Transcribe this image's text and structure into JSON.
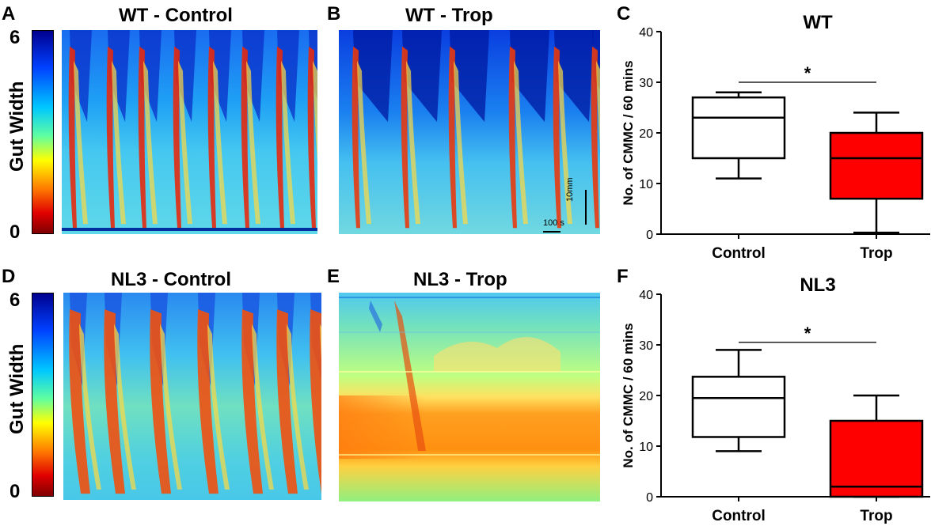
{
  "panels": {
    "A": {
      "letter": "A",
      "title": "WT - Control"
    },
    "B": {
      "letter": "B",
      "title": "WT - Trop",
      "scale_time": "100 s",
      "scale_length": "10mm"
    },
    "C": {
      "letter": "C"
    },
    "D": {
      "letter": "D",
      "title": "NL3 - Control"
    },
    "E": {
      "letter": "E",
      "title": "NL3 - Trop"
    },
    "F": {
      "letter": "F"
    }
  },
  "colorbar": {
    "label": "Gut Width",
    "max_label": "6",
    "min_label": "0"
  },
  "colors": {
    "trop_fill": "#ff0000",
    "control_fill": "#ffffff"
  },
  "chart_data": [
    {
      "type": "box",
      "title": "WT",
      "xlabel": "",
      "ylabel": "No. of CMMC / 60 mins",
      "ylim": [
        0,
        40
      ],
      "yticks": [
        "0",
        "10",
        "20",
        "30",
        "40"
      ],
      "categories": [
        "Control",
        "Trop"
      ],
      "boxes": [
        {
          "name": "Control",
          "min": 11,
          "q1": 15,
          "median": 23,
          "q3": 27,
          "max": 28,
          "fill": "#ffffff"
        },
        {
          "name": "Trop",
          "min": 0.3,
          "q1": 7,
          "median": 15,
          "q3": 20,
          "max": 24,
          "fill": "#ff0000"
        }
      ],
      "significance": {
        "label": "*",
        "y": 30
      }
    },
    {
      "type": "box",
      "title": "NL3",
      "xlabel": "",
      "ylabel": "No. of CMMC / 60 mins",
      "ylim": [
        0,
        40
      ],
      "yticks": [
        "0",
        "10",
        "20",
        "30",
        "40"
      ],
      "categories": [
        "Control",
        "Trop"
      ],
      "boxes": [
        {
          "name": "Control",
          "min": 9,
          "q1": 11.8,
          "median": 19.5,
          "q3": 23.7,
          "max": 29,
          "fill": "#ffffff"
        },
        {
          "name": "Trop",
          "min": 0,
          "q1": 0,
          "median": 2,
          "q3": 15,
          "max": 20,
          "fill": "#ff0000"
        }
      ],
      "significance": {
        "label": "*",
        "y": 30.5
      }
    }
  ]
}
